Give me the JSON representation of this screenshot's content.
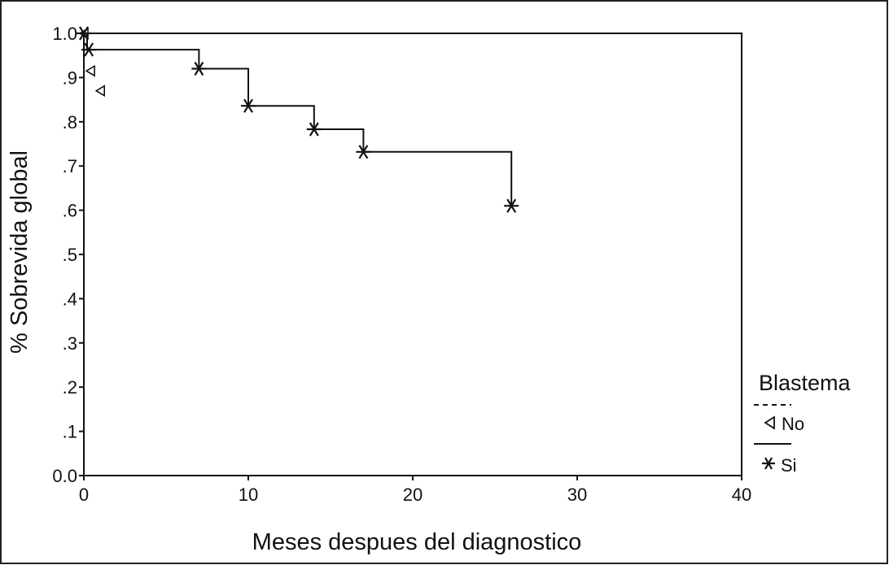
{
  "chart_data": {
    "type": "line",
    "title": "",
    "xlabel": "Meses despues del diagnostico",
    "ylabel": "% Sobrevida global",
    "xlim": [
      0,
      40
    ],
    "ylim": [
      0,
      1
    ],
    "x_ticks": [
      "0",
      "10",
      "20",
      "30",
      "40"
    ],
    "y_ticks": [
      "0.0",
      ".1",
      ".2",
      ".3",
      ".4",
      ".5",
      ".6",
      ".7",
      ".8",
      ".9",
      "1.0"
    ],
    "legend_title": "Blastema",
    "legend_position": "right",
    "grid": false,
    "series": [
      {
        "name": "No",
        "line_style": "dashed",
        "marker": "triangle-left",
        "steps": [
          [
            0,
            1.0
          ],
          [
            40,
            1.0
          ]
        ],
        "censored": [
          [
            0,
            1.0
          ],
          [
            0.4,
            0.915
          ],
          [
            1.0,
            0.87
          ]
        ]
      },
      {
        "name": "Si",
        "line_style": "solid",
        "marker": "asterisk",
        "steps": [
          [
            0,
            1.0
          ],
          [
            0.2,
            1.0
          ],
          [
            0.2,
            0.963
          ],
          [
            7,
            0.963
          ],
          [
            7,
            0.92
          ],
          [
            10,
            0.92
          ],
          [
            10,
            0.836
          ],
          [
            14,
            0.836
          ],
          [
            14,
            0.783
          ],
          [
            17,
            0.783
          ],
          [
            17,
            0.732
          ],
          [
            26,
            0.732
          ],
          [
            26,
            0.61
          ]
        ],
        "censored": [
          [
            0,
            1.0
          ],
          [
            0.3,
            0.963
          ],
          [
            7,
            0.92
          ],
          [
            10,
            0.836
          ],
          [
            14,
            0.783
          ],
          [
            17,
            0.732
          ],
          [
            26,
            0.61
          ]
        ]
      }
    ]
  }
}
